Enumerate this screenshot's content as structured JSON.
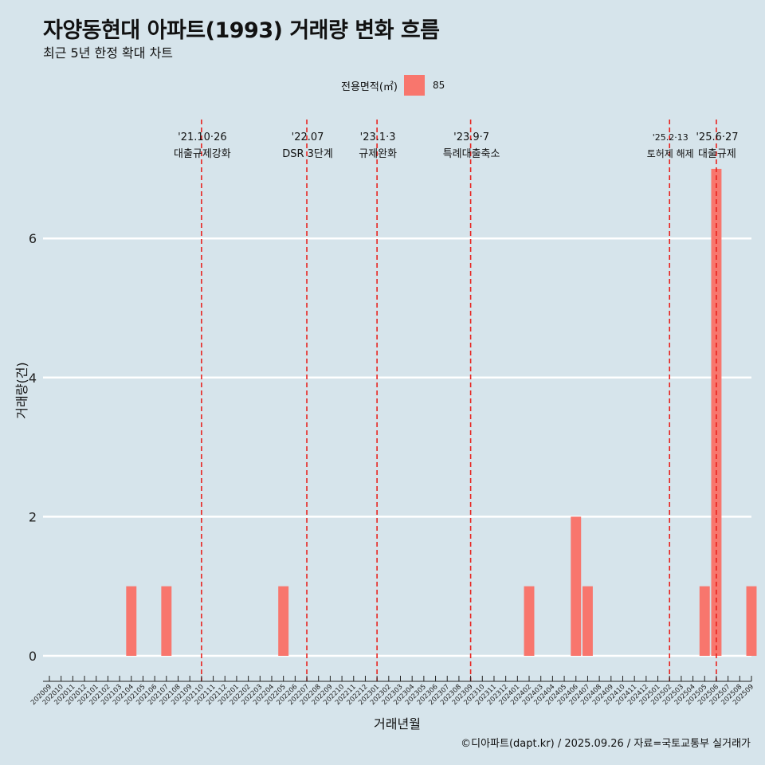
{
  "chart_data": {
    "type": "bar",
    "title": "자양동현대 아파트(1993) 거래량 변화 흐름",
    "subtitle": "최근 5년 한정 확대 차트",
    "xlabel": "거래년월",
    "ylabel": "거래량(건)",
    "ylim": [
      0,
      7
    ],
    "yticks": [
      0,
      2,
      4,
      6
    ],
    "legend": {
      "title": "전용면적(㎡)",
      "entries": [
        "85"
      ],
      "position": "top"
    },
    "categories": [
      "202009",
      "202010",
      "202011",
      "202012",
      "202101",
      "202102",
      "202103",
      "202104",
      "202105",
      "202106",
      "202107",
      "202108",
      "202109",
      "202110",
      "202111",
      "202112",
      "202201",
      "202202",
      "202203",
      "202204",
      "202205",
      "202206",
      "202207",
      "202208",
      "202209",
      "202210",
      "202211",
      "202212",
      "202301",
      "202302",
      "202303",
      "202304",
      "202305",
      "202306",
      "202307",
      "202308",
      "202309",
      "202310",
      "202311",
      "202312",
      "202401",
      "202402",
      "202403",
      "202404",
      "202405",
      "202406",
      "202407",
      "202408",
      "202409",
      "202410",
      "202411",
      "202412",
      "202501",
      "202502",
      "202503",
      "202504",
      "202505",
      "202506",
      "202507",
      "202508",
      "202509"
    ],
    "series": [
      {
        "name": "85",
        "values": [
          0,
          0,
          0,
          0,
          0,
          0,
          0,
          1,
          0,
          0,
          1,
          0,
          0,
          0,
          0,
          0,
          0,
          0,
          0,
          0,
          1,
          0,
          0,
          0,
          0,
          0,
          0,
          0,
          0,
          0,
          0,
          0,
          0,
          0,
          0,
          0,
          0,
          0,
          0,
          0,
          0,
          1,
          0,
          0,
          0,
          2,
          1,
          0,
          0,
          0,
          0,
          0,
          0,
          0,
          0,
          0,
          1,
          7,
          0,
          0,
          1
        ]
      }
    ],
    "annotations": [
      {
        "x": "202110",
        "date": "'21.10·26",
        "label": "대출규제강화"
      },
      {
        "x": "202207",
        "date": "'22.07",
        "label": "DSR 3단계"
      },
      {
        "x": "202301",
        "date": "'23.1·3",
        "label": "규제완화"
      },
      {
        "x": "202309",
        "date": "'23.9·7",
        "label": "특례대출축소"
      },
      {
        "x": "202502",
        "date": "'25.2·13",
        "label": "토허제 해제"
      },
      {
        "x": "202506",
        "date": "'25.6·27",
        "label": "대출규제"
      }
    ],
    "grid": true
  },
  "colors": {
    "background": "#d6e4eb",
    "bar": "#f8766d",
    "annotation_line": "#e8231f",
    "grid": "#ffffff"
  },
  "caption": "©디아파트(dapt.kr) / 2025.09.26 / 자료=국토교통부 실거래가"
}
